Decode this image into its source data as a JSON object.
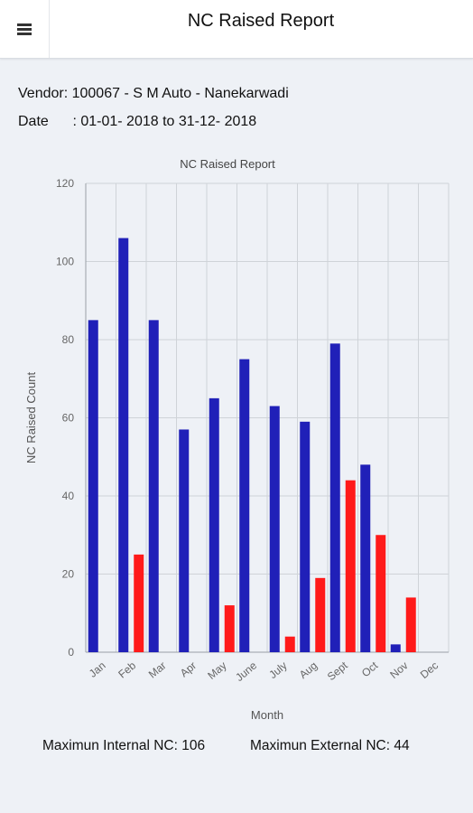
{
  "header": {
    "title": "NC Raised Report",
    "menu_icon": "hamburger-menu-icon"
  },
  "info": {
    "vendor_label": "Vendor:",
    "vendor_value": "100067 - S M Auto - Nanekarwadi",
    "date_label": "Date",
    "date_value": ": 01-01- 2018 to 31-12- 2018"
  },
  "chart_data": {
    "type": "bar",
    "title": "NC Raised Report",
    "xlabel": "Month",
    "ylabel": "NC Raised Count",
    "ylim": [
      0,
      120
    ],
    "yticks": [
      0,
      20,
      40,
      60,
      80,
      100,
      120
    ],
    "grid": true,
    "categories": [
      "Jan",
      "Feb",
      "Mar",
      "Apr",
      "May",
      "June",
      "July",
      "Aug",
      "Sept",
      "Oct",
      "Nov",
      "Dec"
    ],
    "series": [
      {
        "color": "#2020b8",
        "values": [
          85,
          106,
          85,
          57,
          65,
          75,
          63,
          59,
          79,
          48,
          2,
          0
        ]
      },
      {
        "color": "#ff1a1a",
        "values": [
          0,
          25,
          0,
          0,
          12,
          0,
          4,
          19,
          44,
          30,
          14,
          0
        ]
      }
    ]
  },
  "summary": {
    "internal_label": "Maximun Internal NC:",
    "internal_value": "106",
    "external_label": "Maximun External NC:",
    "external_value": "44"
  }
}
